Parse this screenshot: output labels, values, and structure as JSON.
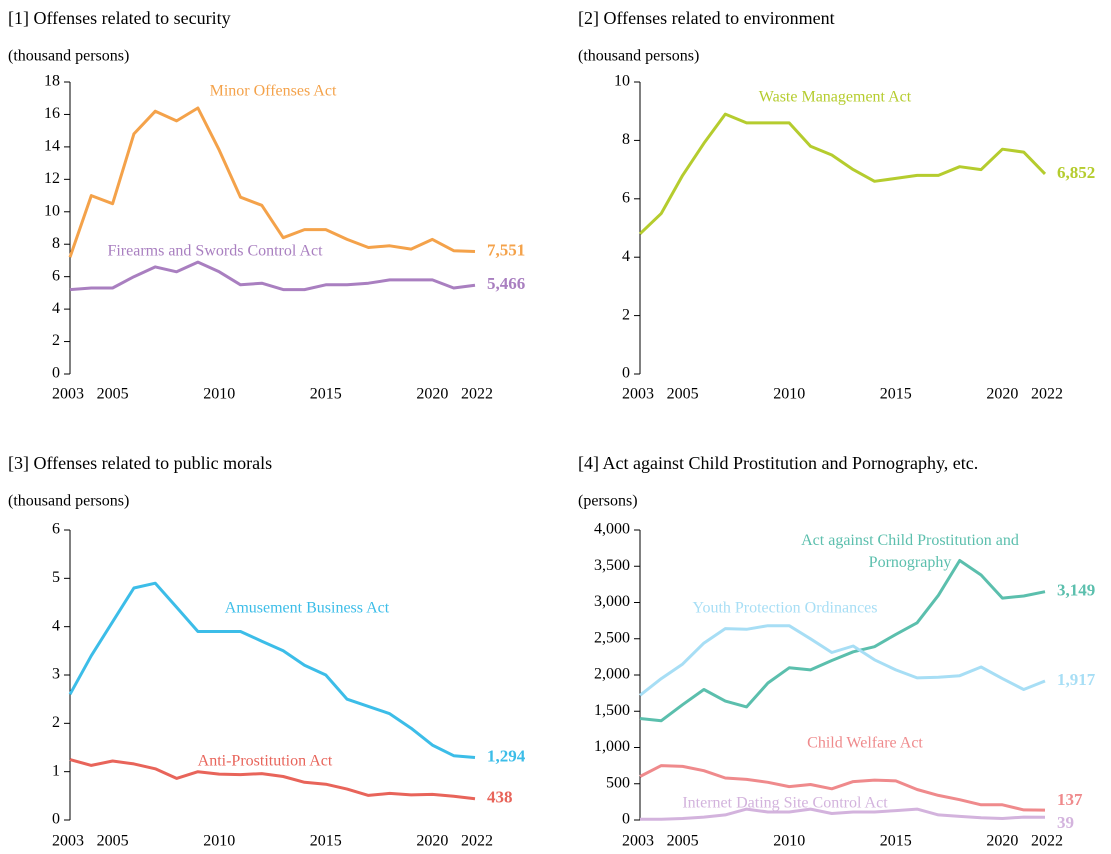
{
  "chart_data": [
    {
      "type": "line",
      "title": "[1] Offenses related to security",
      "y_label": "(thousand persons)",
      "x": [
        2003,
        2004,
        2005,
        2006,
        2007,
        2008,
        2009,
        2010,
        2011,
        2012,
        2013,
        2014,
        2015,
        2016,
        2017,
        2018,
        2019,
        2020,
        2021,
        2022
      ],
      "xlim": [
        2003,
        2022
      ],
      "xticks": [
        2003,
        2005,
        2010,
        2015,
        2020,
        2022
      ],
      "ylim": [
        0,
        18
      ],
      "yticks": [
        0,
        2,
        4,
        6,
        8,
        10,
        12,
        14,
        16,
        18
      ],
      "end_labels": true,
      "series": [
        {
          "name": "Minor Offenses Act",
          "color": "#f4a24a",
          "values": [
            7.2,
            11.0,
            10.5,
            14.8,
            16.2,
            15.6,
            16.4,
            13.8,
            10.9,
            10.4,
            8.4,
            8.9,
            8.9,
            8.3,
            7.8,
            7.9,
            7.7,
            8.3,
            7.6,
            7.551
          ],
          "value_labels": [
            null,
            null,
            null,
            null,
            null,
            null,
            null,
            null,
            null,
            null,
            null,
            null,
            null,
            null,
            null,
            null,
            null,
            null,
            null,
            "7,551"
          ]
        },
        {
          "name": "Firearms and Swords Control Act",
          "color": "#a97fc0",
          "values": [
            5.2,
            5.3,
            5.3,
            6.0,
            6.6,
            6.3,
            6.9,
            6.3,
            5.5,
            5.6,
            5.2,
            5.2,
            5.5,
            5.5,
            5.6,
            5.8,
            5.8,
            5.8,
            5.3,
            5.466
          ],
          "value_labels": [
            null,
            null,
            null,
            null,
            null,
            null,
            null,
            null,
            null,
            null,
            null,
            null,
            null,
            null,
            null,
            null,
            null,
            null,
            null,
            "5,466"
          ]
        }
      ]
    },
    {
      "type": "line",
      "title": "[2] Offenses related to environment",
      "y_label": "(thousand persons)",
      "x": [
        2003,
        2004,
        2005,
        2006,
        2007,
        2008,
        2009,
        2010,
        2011,
        2012,
        2013,
        2014,
        2015,
        2016,
        2017,
        2018,
        2019,
        2020,
        2021,
        2022
      ],
      "xlim": [
        2003,
        2022
      ],
      "xticks": [
        2003,
        2005,
        2010,
        2015,
        2020,
        2022
      ],
      "ylim": [
        0,
        10
      ],
      "yticks": [
        0,
        2,
        4,
        6,
        8,
        10
      ],
      "end_labels": true,
      "series": [
        {
          "name": "Waste Management Act",
          "color": "#b5cc2e",
          "values": [
            4.8,
            5.5,
            6.8,
            7.9,
            8.9,
            8.6,
            8.6,
            8.6,
            7.8,
            7.5,
            7.0,
            6.6,
            6.7,
            6.8,
            6.8,
            7.1,
            7.0,
            7.7,
            7.6,
            6.852
          ],
          "value_labels": [
            null,
            null,
            null,
            null,
            null,
            null,
            null,
            null,
            null,
            null,
            null,
            null,
            null,
            null,
            null,
            null,
            null,
            null,
            null,
            "6,852"
          ]
        }
      ]
    },
    {
      "type": "line",
      "title": "[3] Offenses related to public morals",
      "y_label": "(thousand persons)",
      "x": [
        2003,
        2004,
        2005,
        2006,
        2007,
        2008,
        2009,
        2010,
        2011,
        2012,
        2013,
        2014,
        2015,
        2016,
        2017,
        2018,
        2019,
        2020,
        2021,
        2022
      ],
      "xlim": [
        2003,
        2022
      ],
      "xticks": [
        2003,
        2005,
        2010,
        2015,
        2020,
        2022
      ],
      "ylim": [
        0,
        6
      ],
      "yticks": [
        0,
        1,
        2,
        3,
        4,
        5,
        6
      ],
      "end_labels": true,
      "series": [
        {
          "name": "Amusement Business Act",
          "color": "#3cbde8",
          "values": [
            2.6,
            3.4,
            4.1,
            4.8,
            4.9,
            4.4,
            3.9,
            3.9,
            3.9,
            3.7,
            3.5,
            3.2,
            3.0,
            2.5,
            2.35,
            2.2,
            1.9,
            1.55,
            1.33,
            1.294
          ],
          "value_labels": [
            null,
            null,
            null,
            null,
            null,
            null,
            null,
            null,
            null,
            null,
            null,
            null,
            null,
            null,
            null,
            null,
            null,
            null,
            null,
            "1,294"
          ]
        },
        {
          "name": "Anti-Prostitution Act",
          "color": "#e8645a",
          "values": [
            1.25,
            1.13,
            1.22,
            1.16,
            1.06,
            0.86,
            1.0,
            0.95,
            0.94,
            0.96,
            0.9,
            0.78,
            0.74,
            0.64,
            0.51,
            0.55,
            0.52,
            0.53,
            0.49,
            0.438
          ],
          "value_labels": [
            null,
            null,
            null,
            null,
            null,
            null,
            null,
            null,
            null,
            null,
            null,
            null,
            null,
            null,
            null,
            null,
            null,
            null,
            null,
            "438"
          ]
        }
      ]
    },
    {
      "type": "line",
      "title": "[4] Act against Child Prostitution and Pornography, etc.",
      "y_label": "(persons)",
      "x": [
        2003,
        2004,
        2005,
        2006,
        2007,
        2008,
        2009,
        2010,
        2011,
        2012,
        2013,
        2014,
        2015,
        2016,
        2017,
        2018,
        2019,
        2020,
        2021,
        2022
      ],
      "xlim": [
        2003,
        2022
      ],
      "xticks": [
        2003,
        2005,
        2010,
        2015,
        2020,
        2022
      ],
      "ylim": [
        0,
        4000
      ],
      "yticks": [
        0,
        500,
        {
          "value": 1000,
          "label": "1,000"
        },
        {
          "value": 1500,
          "label": "1,500"
        },
        {
          "value": 2000,
          "label": "2,000"
        },
        {
          "value": 2500,
          "label": "2,500"
        },
        {
          "value": 3000,
          "label": "3,000"
        },
        {
          "value": 3500,
          "label": "3,500"
        },
        {
          "value": 4000,
          "label": "4,000"
        }
      ],
      "end_labels": true,
      "series": [
        {
          "name": "Act against Child Prostitution and Pornography",
          "color": "#5bbfad",
          "values": [
            1400,
            1370,
            1590,
            1800,
            1640,
            1560,
            1890,
            2100,
            2070,
            2200,
            2320,
            2390,
            2560,
            2720,
            3100,
            3580,
            3380,
            3060,
            3090,
            3149
          ],
          "value_labels": [
            null,
            null,
            null,
            null,
            null,
            null,
            null,
            null,
            null,
            null,
            null,
            null,
            null,
            null,
            null,
            null,
            null,
            null,
            null,
            "3,149"
          ]
        },
        {
          "name": "Youth Protection Ordinances",
          "color": "#a7def5",
          "values": [
            1720,
            1950,
            2150,
            2440,
            2640,
            2630,
            2680,
            2680,
            2500,
            2310,
            2400,
            2210,
            2070,
            1960,
            1970,
            1990,
            2110,
            1950,
            1800,
            1917
          ],
          "value_labels": [
            null,
            null,
            null,
            null,
            null,
            null,
            null,
            null,
            null,
            null,
            null,
            null,
            null,
            null,
            null,
            null,
            null,
            null,
            null,
            "1,917"
          ]
        },
        {
          "name": "Child Welfare Act",
          "color": "#ef8a8c",
          "values": [
            600,
            750,
            740,
            680,
            580,
            560,
            520,
            460,
            490,
            430,
            530,
            550,
            540,
            420,
            340,
            280,
            210,
            210,
            140,
            137
          ]
        },
        {
          "name": "Internet Dating Site Control Act",
          "color": "#d3b3dd",
          "values": [
            10,
            10,
            20,
            40,
            70,
            150,
            110,
            110,
            150,
            90,
            110,
            110,
            130,
            150,
            70,
            50,
            30,
            20,
            40,
            39
          ]
        }
      ]
    }
  ]
}
